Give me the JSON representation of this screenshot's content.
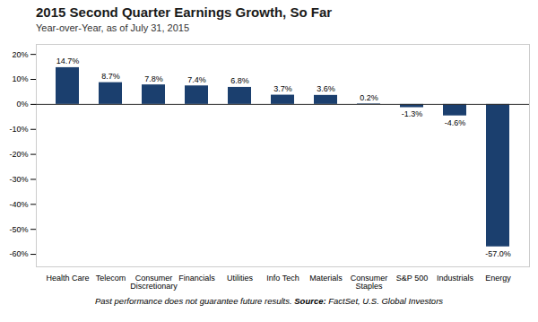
{
  "chart_data": {
    "type": "bar",
    "title": "2015 Second Quarter Earnings Growth, So Far",
    "subtitle": "Year-over-Year, as of July 31, 2015",
    "categories": [
      "Health Care",
      "Telecom",
      "Consumer\nDiscretionary",
      "Financials",
      "Utilities",
      "Info Tech",
      "Materials",
      "Consumer\nStaples",
      "S&P 500",
      "Industrials",
      "Energy"
    ],
    "values": [
      14.7,
      8.7,
      7.8,
      7.4,
      6.8,
      3.7,
      3.6,
      0.2,
      -1.3,
      -4.6,
      -57.0
    ],
    "value_labels": [
      "14.7%",
      "8.7%",
      "7.8%",
      "7.4%",
      "6.8%",
      "3.7%",
      "3.6%",
      "0.2%",
      "-1.3%",
      "-4.6%",
      "-57.0%"
    ],
    "data_labels": true,
    "color": "#1B3F6E",
    "ylim": [
      -65,
      24
    ],
    "yticks": [
      {
        "value": -60,
        "label": "-60%"
      },
      {
        "value": -50,
        "label": "-50%"
      },
      {
        "value": -40,
        "label": "-40%"
      },
      {
        "value": -30,
        "label": "-30%"
      },
      {
        "value": -20,
        "label": "-20%"
      },
      {
        "value": -10,
        "label": "-10%"
      },
      {
        "value": 0,
        "label": "0%"
      },
      {
        "value": 10,
        "label": "10%"
      },
      {
        "value": 20,
        "label": "20%"
      }
    ],
    "grid": false,
    "footer": [
      "Past performance does not guarantee future results.",
      "Source:",
      "FactSet, U.S. Global Investors"
    ]
  }
}
